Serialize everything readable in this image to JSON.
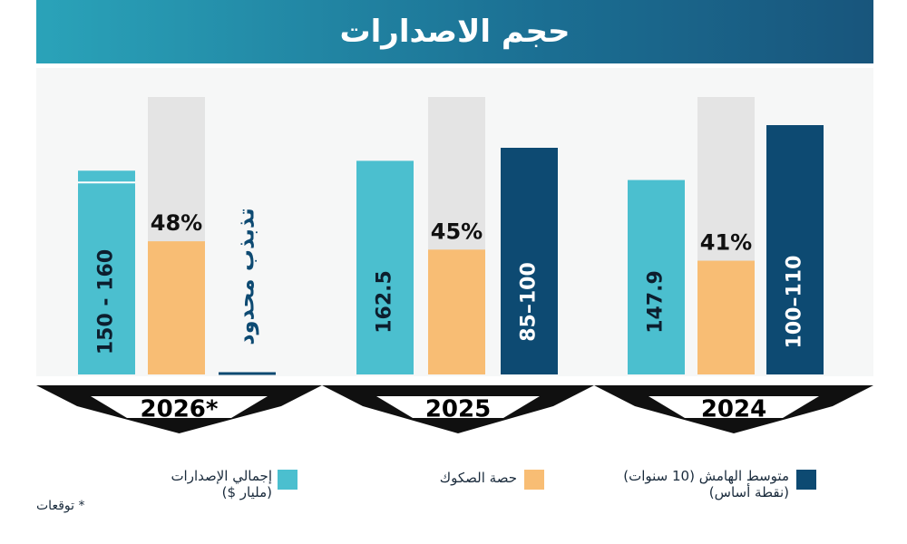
{
  "title": "حجم الاصدارات",
  "colors": {
    "issuance": "#4bbfcf",
    "sukuk_share": "#f8bd74",
    "spread": "#0d4a72",
    "share_remainder": "#e4e4e4",
    "axis_band": "#101010",
    "year_text": "#000000"
  },
  "chart_data": {
    "type": "bar",
    "title": "حجم الاصدارات",
    "categories": [
      "2024",
      "2025",
      "2026*"
    ],
    "series": [
      {
        "name": "إجمالي الإصدارات (مليار $)",
        "key": "issuance",
        "values": [
          147.9,
          162.5,
          155
        ],
        "labels": [
          "147.9",
          "162.5",
          "150 - 160"
        ],
        "range_2026": [
          150,
          160
        ]
      },
      {
        "name": "حصة الصكوك",
        "key": "sukuk_share",
        "values": [
          41,
          45,
          48
        ],
        "labels": [
          "41%",
          "45%",
          "48%"
        ],
        "unit": "%"
      },
      {
        "name": "متوسط الهامش (10 سنوات) (نقطة أساس)",
        "key": "spread",
        "values": [
          110,
          100,
          null
        ],
        "labels": [
          "100–110",
          "85–100",
          "تذبذب محدود"
        ],
        "ranges": [
          [
            100,
            110
          ],
          [
            85,
            100
          ],
          null
        ]
      }
    ]
  },
  "legend": [
    {
      "key": "spread",
      "line1": "متوسط الهامش (10 سنوات)",
      "line2": "(نقطة أساس)"
    },
    {
      "key": "sukuk_share",
      "line1": "حصة الصكوك",
      "line2": ""
    },
    {
      "key": "issuance",
      "line1": "إجمالي الإصدارات",
      "line2": "(مليار $)"
    }
  ],
  "footnote": "*   توقعات"
}
